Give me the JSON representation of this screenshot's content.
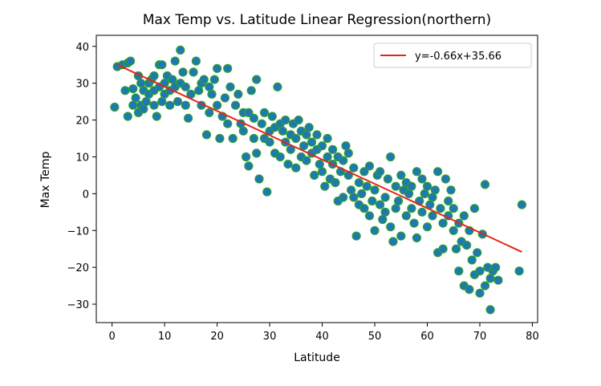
{
  "chart_data": {
    "type": "scatter",
    "title": "Max Temp vs. Latitude Linear Regression(northern)",
    "xlabel": "Latitude",
    "ylabel": "Max Temp",
    "xlim": [
      -3,
      81
    ],
    "ylim": [
      -35,
      43
    ],
    "xticks": [
      0,
      10,
      20,
      30,
      40,
      50,
      60,
      70,
      80
    ],
    "yticks": [
      -30,
      -20,
      -10,
      0,
      10,
      20,
      30,
      40
    ],
    "grid": false,
    "legend_position": "top-right",
    "marker_face_color": "#1f77b4",
    "marker_edge_color": "#2ca02c",
    "regression": {
      "label": "y=-0.66x+35.66",
      "slope": -0.66,
      "intercept": 35.66,
      "x_range": [
        1,
        78
      ],
      "color": "#e8231f"
    },
    "points": [
      [
        0.5,
        23.5
      ],
      [
        1,
        34.5
      ],
      [
        2,
        35
      ],
      [
        2.5,
        28
      ],
      [
        3,
        21
      ],
      [
        3,
        35.5
      ],
      [
        3.5,
        36
      ],
      [
        4,
        28.5
      ],
      [
        4,
        24
      ],
      [
        4.5,
        26
      ],
      [
        5,
        32
      ],
      [
        5,
        22
      ],
      [
        5.5,
        30
      ],
      [
        5.5,
        24
      ],
      [
        6,
        28
      ],
      [
        6,
        23
      ],
      [
        6.5,
        25
      ],
      [
        7,
        27
      ],
      [
        7,
        30
      ],
      [
        7.5,
        31
      ],
      [
        8,
        32
      ],
      [
        8,
        28
      ],
      [
        8,
        24
      ],
      [
        8.5,
        21
      ],
      [
        9,
        35
      ],
      [
        9,
        29
      ],
      [
        9.5,
        35
      ],
      [
        9.5,
        25
      ],
      [
        10,
        30
      ],
      [
        10,
        27
      ],
      [
        10.5,
        32
      ],
      [
        11,
        24
      ],
      [
        11,
        28
      ],
      [
        11.5,
        31
      ],
      [
        12,
        36
      ],
      [
        12,
        29
      ],
      [
        12.5,
        25
      ],
      [
        13,
        30
      ],
      [
        13,
        39
      ],
      [
        13.5,
        33
      ],
      [
        14,
        24
      ],
      [
        14,
        29
      ],
      [
        14.5,
        20.5
      ],
      [
        15,
        27
      ],
      [
        15.5,
        33
      ],
      [
        16,
        36
      ],
      [
        16.5,
        28
      ],
      [
        17,
        24
      ],
      [
        17,
        30
      ],
      [
        17.5,
        31
      ],
      [
        18,
        16
      ],
      [
        18.5,
        22
      ],
      [
        18.5,
        29
      ],
      [
        19,
        27
      ],
      [
        19.5,
        31
      ],
      [
        20,
        34
      ],
      [
        20,
        24
      ],
      [
        20.5,
        15
      ],
      [
        21,
        21
      ],
      [
        21.5,
        26
      ],
      [
        22,
        34
      ],
      [
        22,
        19
      ],
      [
        22.5,
        29
      ],
      [
        23,
        15
      ],
      [
        23.5,
        24
      ],
      [
        24,
        27
      ],
      [
        24.5,
        19
      ],
      [
        25,
        17
      ],
      [
        25,
        22
      ],
      [
        25.5,
        10
      ],
      [
        26,
        7.5
      ],
      [
        26,
        22
      ],
      [
        26.5,
        28
      ],
      [
        27,
        15
      ],
      [
        27,
        20.5
      ],
      [
        27.5,
        11
      ],
      [
        27.5,
        31
      ],
      [
        28,
        4
      ],
      [
        28.5,
        19
      ],
      [
        29,
        22
      ],
      [
        29,
        15
      ],
      [
        29.5,
        0.5
      ],
      [
        30,
        17
      ],
      [
        30,
        14
      ],
      [
        30.5,
        21
      ],
      [
        31,
        18
      ],
      [
        31,
        11
      ],
      [
        31.5,
        29
      ],
      [
        32,
        19
      ],
      [
        32,
        10
      ],
      [
        32.5,
        17
      ],
      [
        33,
        14
      ],
      [
        33,
        20
      ],
      [
        33.5,
        8
      ],
      [
        34,
        16
      ],
      [
        34,
        12
      ],
      [
        34.5,
        19
      ],
      [
        35,
        7
      ],
      [
        35,
        15
      ],
      [
        35.5,
        20
      ],
      [
        36,
        10
      ],
      [
        36,
        17
      ],
      [
        36.5,
        13
      ],
      [
        37,
        9
      ],
      [
        37,
        16
      ],
      [
        37.5,
        18
      ],
      [
        38,
        11
      ],
      [
        38,
        14
      ],
      [
        38.5,
        5
      ],
      [
        39,
        12
      ],
      [
        39,
        16
      ],
      [
        39.5,
        8
      ],
      [
        40,
        6
      ],
      [
        40,
        13
      ],
      [
        40.5,
        2
      ],
      [
        41,
        10
      ],
      [
        41,
        15
      ],
      [
        41.5,
        4
      ],
      [
        42,
        8
      ],
      [
        42,
        12
      ],
      [
        42.5,
        3
      ],
      [
        43,
        10
      ],
      [
        43,
        -2
      ],
      [
        43.5,
        6
      ],
      [
        44,
        9
      ],
      [
        44,
        -1
      ],
      [
        44.5,
        13
      ],
      [
        45,
        5
      ],
      [
        45,
        11
      ],
      [
        45.5,
        1
      ],
      [
        46,
        -1
      ],
      [
        46,
        7
      ],
      [
        46.5,
        -11.5
      ],
      [
        47,
        3
      ],
      [
        47,
        -3
      ],
      [
        47.5,
        0
      ],
      [
        48,
        -4
      ],
      [
        48,
        6
      ],
      [
        48.5,
        2
      ],
      [
        49,
        -6
      ],
      [
        49,
        7.5
      ],
      [
        49.5,
        -2
      ],
      [
        50,
        -10
      ],
      [
        50,
        1
      ],
      [
        50.5,
        5
      ],
      [
        51,
        -3
      ],
      [
        51,
        6
      ],
      [
        51.5,
        -7
      ],
      [
        52,
        -1
      ],
      [
        52,
        -5
      ],
      [
        52.5,
        4
      ],
      [
        53,
        10
      ],
      [
        53,
        -9
      ],
      [
        53.5,
        -13
      ],
      [
        54,
        2
      ],
      [
        54,
        -4
      ],
      [
        54.5,
        -2
      ],
      [
        55,
        -11.5
      ],
      [
        55,
        5
      ],
      [
        55.5,
        1
      ],
      [
        56,
        -6
      ],
      [
        56,
        3
      ],
      [
        56.5,
        0
      ],
      [
        57,
        -4
      ],
      [
        57,
        2
      ],
      [
        57.5,
        -8
      ],
      [
        58,
        -12
      ],
      [
        58,
        6
      ],
      [
        58.5,
        -2
      ],
      [
        59,
        -5
      ],
      [
        59,
        4
      ],
      [
        59.5,
        0
      ],
      [
        60,
        -9
      ],
      [
        60,
        2
      ],
      [
        60.5,
        -3
      ],
      [
        61,
        -6
      ],
      [
        61,
        -1
      ],
      [
        61.5,
        1
      ],
      [
        62,
        -16
      ],
      [
        62,
        6
      ],
      [
        62.5,
        -4
      ],
      [
        63,
        -8
      ],
      [
        63,
        -15
      ],
      [
        63.5,
        4
      ],
      [
        64,
        -6
      ],
      [
        64,
        -2
      ],
      [
        64.5,
        1
      ],
      [
        65,
        -10
      ],
      [
        65,
        -4
      ],
      [
        65.5,
        -15
      ],
      [
        66,
        -8
      ],
      [
        66,
        -21
      ],
      [
        66.5,
        -13
      ],
      [
        67,
        -25
      ],
      [
        67,
        -6
      ],
      [
        67.5,
        -14
      ],
      [
        68,
        -26
      ],
      [
        68,
        -10
      ],
      [
        68.5,
        -18
      ],
      [
        69,
        -22
      ],
      [
        69,
        -4
      ],
      [
        69.5,
        -16
      ],
      [
        70,
        -21
      ],
      [
        70,
        -27
      ],
      [
        70.5,
        -11
      ],
      [
        71,
        -25
      ],
      [
        71,
        2.5
      ],
      [
        71.5,
        -20
      ],
      [
        72,
        -31.5
      ],
      [
        72,
        -23
      ],
      [
        72.5,
        -21
      ],
      [
        73,
        -20
      ],
      [
        73.5,
        -23.5
      ],
      [
        77.5,
        -21
      ],
      [
        78,
        -3
      ]
    ]
  }
}
